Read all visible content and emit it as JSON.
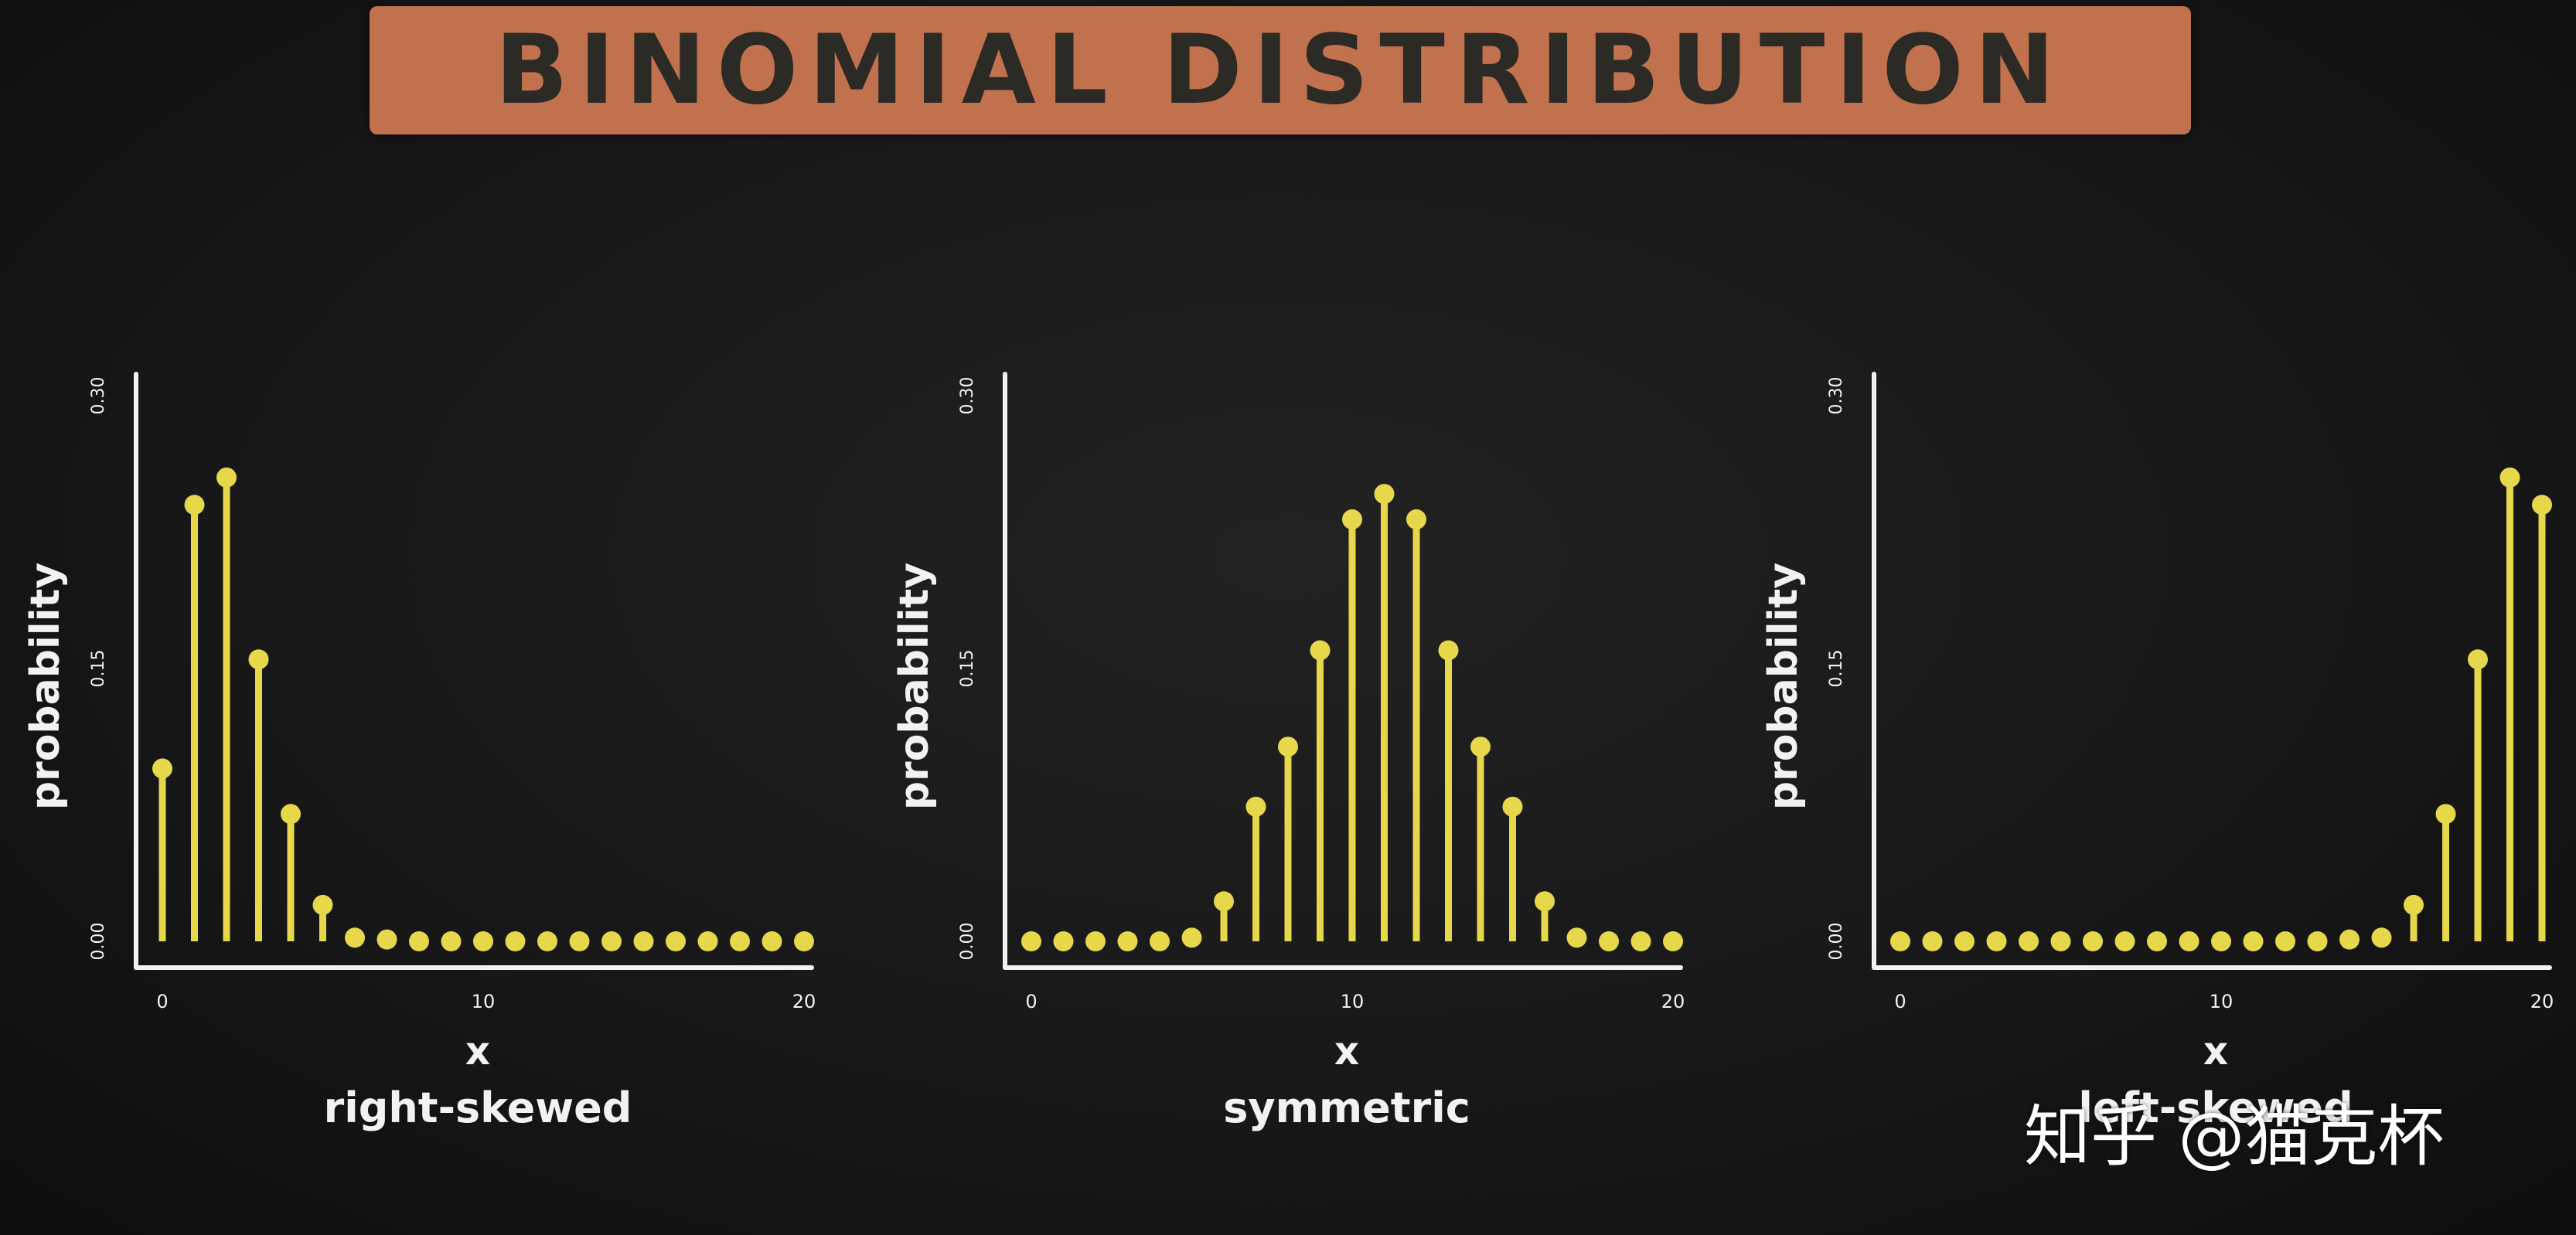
{
  "title": "BINOMIAL DISTRIBUTION",
  "watermark": "知乎 @猫克杯",
  "colors": {
    "background": "#161616",
    "banner": "#c2714f",
    "banner_text": "#2b2a24",
    "stem": "#e6d84a",
    "axis": "#f2f2f2"
  },
  "chart_data": [
    {
      "type": "scatter",
      "style": "lollipop",
      "xlabel": "x",
      "ylabel": "probability",
      "caption": "right-skewed",
      "x": [
        0,
        1,
        2,
        3,
        4,
        5,
        6,
        7,
        8,
        9,
        10,
        11,
        12,
        13,
        14,
        15,
        16,
        17,
        18,
        19,
        20
      ],
      "y": [
        0.095,
        0.24,
        0.255,
        0.155,
        0.07,
        0.02,
        0.002,
        0.001,
        0,
        0,
        0,
        0,
        0,
        0,
        0,
        0,
        0,
        0,
        0,
        0,
        0
      ],
      "xlim": [
        0,
        20
      ],
      "ylim": [
        0,
        0.3
      ],
      "xticks": [
        0,
        10,
        20
      ],
      "xtick_labels": [
        "0",
        "10",
        "20"
      ],
      "yticks": [
        0,
        0.15,
        0.3
      ],
      "ytick_labels": [
        "0.00",
        "0.15",
        "0.30"
      ]
    },
    {
      "type": "scatter",
      "style": "lollipop",
      "xlabel": "x",
      "ylabel": "probability",
      "caption": "symmetric",
      "x": [
        0,
        1,
        2,
        3,
        4,
        5,
        6,
        7,
        8,
        9,
        10,
        11,
        12,
        13,
        14,
        15,
        16,
        17,
        18,
        19,
        20
      ],
      "y": [
        0,
        0,
        0,
        0,
        0,
        0.002,
        0.022,
        0.074,
        0.107,
        0.16,
        0.232,
        0.246,
        0.232,
        0.16,
        0.107,
        0.074,
        0.022,
        0.002,
        0,
        0,
        0
      ],
      "xlim": [
        0,
        20
      ],
      "ylim": [
        0,
        0.3
      ],
      "xticks": [
        0,
        10,
        20
      ],
      "xtick_labels": [
        "0",
        "10",
        "20"
      ],
      "yticks": [
        0,
        0.15,
        0.3
      ],
      "ytick_labels": [
        "0.00",
        "0.15",
        "0.30"
      ]
    },
    {
      "type": "scatter",
      "style": "lollipop",
      "xlabel": "x",
      "ylabel": "probability",
      "caption": "left-skewed",
      "x": [
        0,
        1,
        2,
        3,
        4,
        5,
        6,
        7,
        8,
        9,
        10,
        11,
        12,
        13,
        14,
        15,
        16,
        17,
        18,
        19,
        20
      ],
      "y": [
        0,
        0,
        0,
        0,
        0,
        0,
        0,
        0,
        0,
        0,
        0,
        0,
        0,
        0,
        0.001,
        0.002,
        0.02,
        0.07,
        0.155,
        0.255,
        0.24
      ],
      "xlim": [
        0,
        20
      ],
      "ylim": [
        0,
        0.3
      ],
      "xticks": [
        0,
        10,
        20
      ],
      "xtick_labels": [
        "0",
        "10",
        "20"
      ],
      "yticks": [
        0,
        0.15,
        0.3
      ],
      "ytick_labels": [
        "0.00",
        "0.15",
        "0.30"
      ]
    }
  ]
}
